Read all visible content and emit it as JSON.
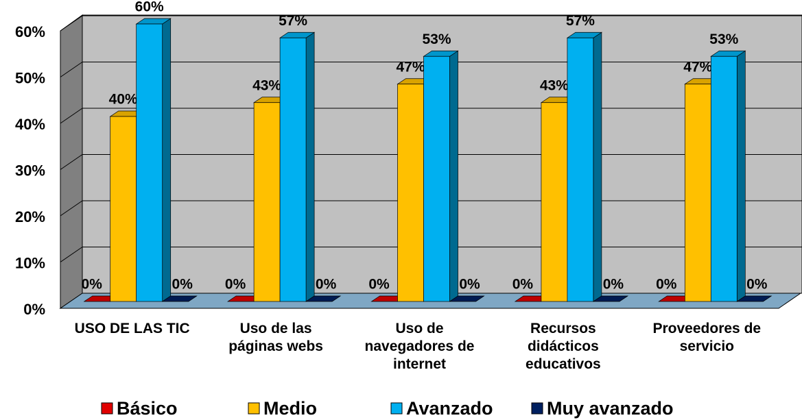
{
  "chart_data": {
    "type": "bar3d",
    "categories": [
      "USO DE LAS TIC",
      "Uso de las páginas webs",
      "Uso de navegadores de internet",
      "Recursos didácticos educativos",
      "Proveedores de servicio"
    ],
    "series": [
      {
        "name": "Básico",
        "color": "#e00000",
        "values": [
          0,
          0,
          0,
          0,
          0
        ],
        "value_labels": [
          "0%",
          "0%",
          "0%",
          "0%",
          "0%"
        ]
      },
      {
        "name": "Medio",
        "color": "#ffc000",
        "values": [
          40,
          43,
          47,
          43,
          47
        ],
        "value_labels": [
          "40%",
          "43%",
          "47%",
          "43%",
          "47%"
        ]
      },
      {
        "name": "Avanzado",
        "color": "#00b0f0",
        "values": [
          60,
          57,
          53,
          57,
          53
        ],
        "value_labels": [
          "60%",
          "57%",
          "53%",
          "57%",
          "53%"
        ]
      },
      {
        "name": "Muy avanzado",
        "color": "#002060",
        "values": [
          0,
          0,
          0,
          0,
          0
        ],
        "value_labels": [
          "0%",
          "0%",
          "0%",
          "0%",
          "0%"
        ]
      }
    ],
    "ylim": [
      0,
      60
    ],
    "yticks": [
      {
        "value": 0,
        "label": "0%"
      },
      {
        "value": 10,
        "label": "10%"
      },
      {
        "value": 20,
        "label": "20%"
      },
      {
        "value": 30,
        "label": "30%"
      },
      {
        "value": 40,
        "label": "40%"
      },
      {
        "value": 50,
        "label": "50%"
      },
      {
        "value": 60,
        "label": "60%"
      }
    ],
    "grid": true,
    "legend": "bottom"
  }
}
